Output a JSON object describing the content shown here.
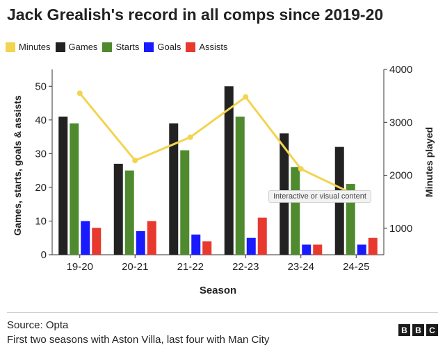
{
  "title": "Jack Grealish's record in all comps since 2019-20",
  "legend": [
    {
      "label": "Minutes",
      "color": "#f2d450"
    },
    {
      "label": "Games",
      "color": "#222222"
    },
    {
      "label": "Starts",
      "color": "#4f8a2f"
    },
    {
      "label": "Goals",
      "color": "#1a1aff"
    },
    {
      "label": "Assists",
      "color": "#e8392f"
    }
  ],
  "chart_data": {
    "type": "bar",
    "categories": [
      "19-20",
      "20-21",
      "21-22",
      "22-23",
      "23-24",
      "24-25"
    ],
    "series": [
      {
        "name": "Games",
        "values": [
          41,
          27,
          39,
          50,
          36,
          32
        ],
        "color": "#222222"
      },
      {
        "name": "Starts",
        "values": [
          39,
          25,
          31,
          41,
          26,
          21
        ],
        "color": "#4f8a2f"
      },
      {
        "name": "Goals",
        "values": [
          10,
          7,
          6,
          5,
          3,
          3
        ],
        "color": "#1a1aff"
      },
      {
        "name": "Assists",
        "values": [
          8,
          10,
          4,
          11,
          3,
          5
        ],
        "color": "#e8392f"
      }
    ],
    "line_series": {
      "name": "Minutes",
      "values": [
        3550,
        2280,
        2720,
        3480,
        2120,
        1620
      ],
      "color": "#f2d450",
      "axis": "right"
    },
    "xlabel": "Season",
    "ylabel": "Games, starts, goals & assists",
    "y2label": "Minutes played",
    "ylim": [
      0,
      55
    ],
    "y2lim": [
      500,
      4000
    ],
    "yticks": [
      "0",
      "10",
      "20",
      "30",
      "40",
      "50"
    ],
    "y2ticks": [
      "1000",
      "2000",
      "3000",
      "4000"
    ],
    "grid": false,
    "legend_position": "top-left"
  },
  "tooltip": "Interactive or visual content",
  "source": {
    "line1": "Source: Opta",
    "line2": "First two seasons with Aston Villa, last four with Man City"
  },
  "logo": [
    "B",
    "B",
    "C"
  ]
}
